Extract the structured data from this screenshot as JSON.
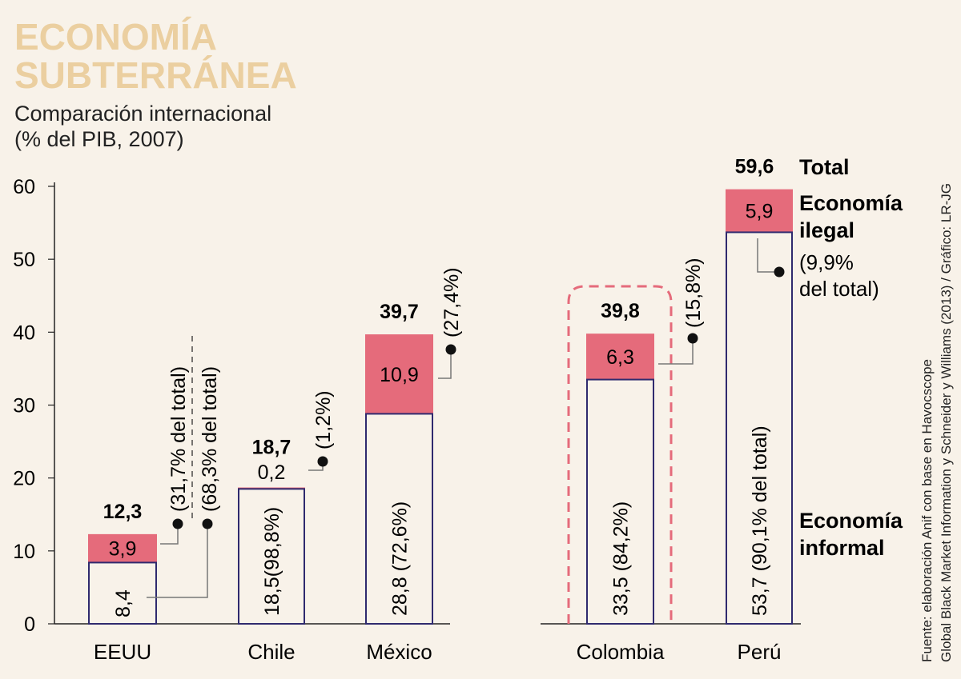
{
  "header": {
    "title_line1": "ECONOMÍA",
    "title_line2": "SUBTERRÁNEA",
    "subtitle_line1": "Comparación internacional",
    "subtitle_line2": "(% del PIB, 2007)"
  },
  "source": {
    "line1": "Fuente: elaboración Anif con base en Havocscope",
    "line2": "Global Black Market Information y Schneider y Williams (2013) / Gráfico: LR-JG"
  },
  "legend": {
    "total": "Total",
    "illegal_line1": "Economía",
    "illegal_line2": "ilegal",
    "illegal_note_line1": "(9,9%",
    "illegal_note_line2": "del total)",
    "informal_line1": "Economía",
    "informal_line2": "informal"
  },
  "colors": {
    "illegal": "#e56b7b",
    "informal_border": "#2f2a6e",
    "background": "#f8f2e9",
    "title": "#ebcfa0"
  },
  "chart_data": {
    "type": "bar",
    "stacked": true,
    "title": "ECONOMÍA SUBTERRÁNEA",
    "subtitle": "Comparación internacional (% del PIB, 2007)",
    "xlabel": "",
    "ylabel": "",
    "ylim": [
      0,
      60
    ],
    "yticks": [
      "0",
      "10",
      "20",
      "30",
      "40",
      "50",
      "60"
    ],
    "categories": [
      "EEUU",
      "Chile",
      "México",
      "Colombia",
      "Perú"
    ],
    "highlighted": "Colombia",
    "series": [
      {
        "name": "Economía informal",
        "values": [
          8.4,
          18.5,
          28.8,
          33.5,
          53.7
        ],
        "labels": [
          "8,4",
          "18,5(98,8%)",
          "28,8 (72,6%)",
          "33,5 (84,2%)",
          "53,7 (90,1% del total)"
        ]
      },
      {
        "name": "Economía ilegal",
        "values": [
          3.9,
          0.2,
          10.9,
          6.3,
          5.9
        ],
        "labels": [
          "3,9",
          "0,2",
          "10,9",
          "6,3",
          "5,9"
        ],
        "share_labels": [
          "(31,7% del total)",
          "(1,2%)",
          "(27,4%)",
          "(15,8%)",
          ""
        ]
      }
    ],
    "totals": [
      12.3,
      18.7,
      39.7,
      39.8,
      59.6
    ],
    "total_labels": [
      "12,3",
      "18,7",
      "39,7",
      "39,8",
      "59,6"
    ],
    "extra_annotations": {
      "EEUU_informal_share": "(68,3% del total)"
    }
  }
}
